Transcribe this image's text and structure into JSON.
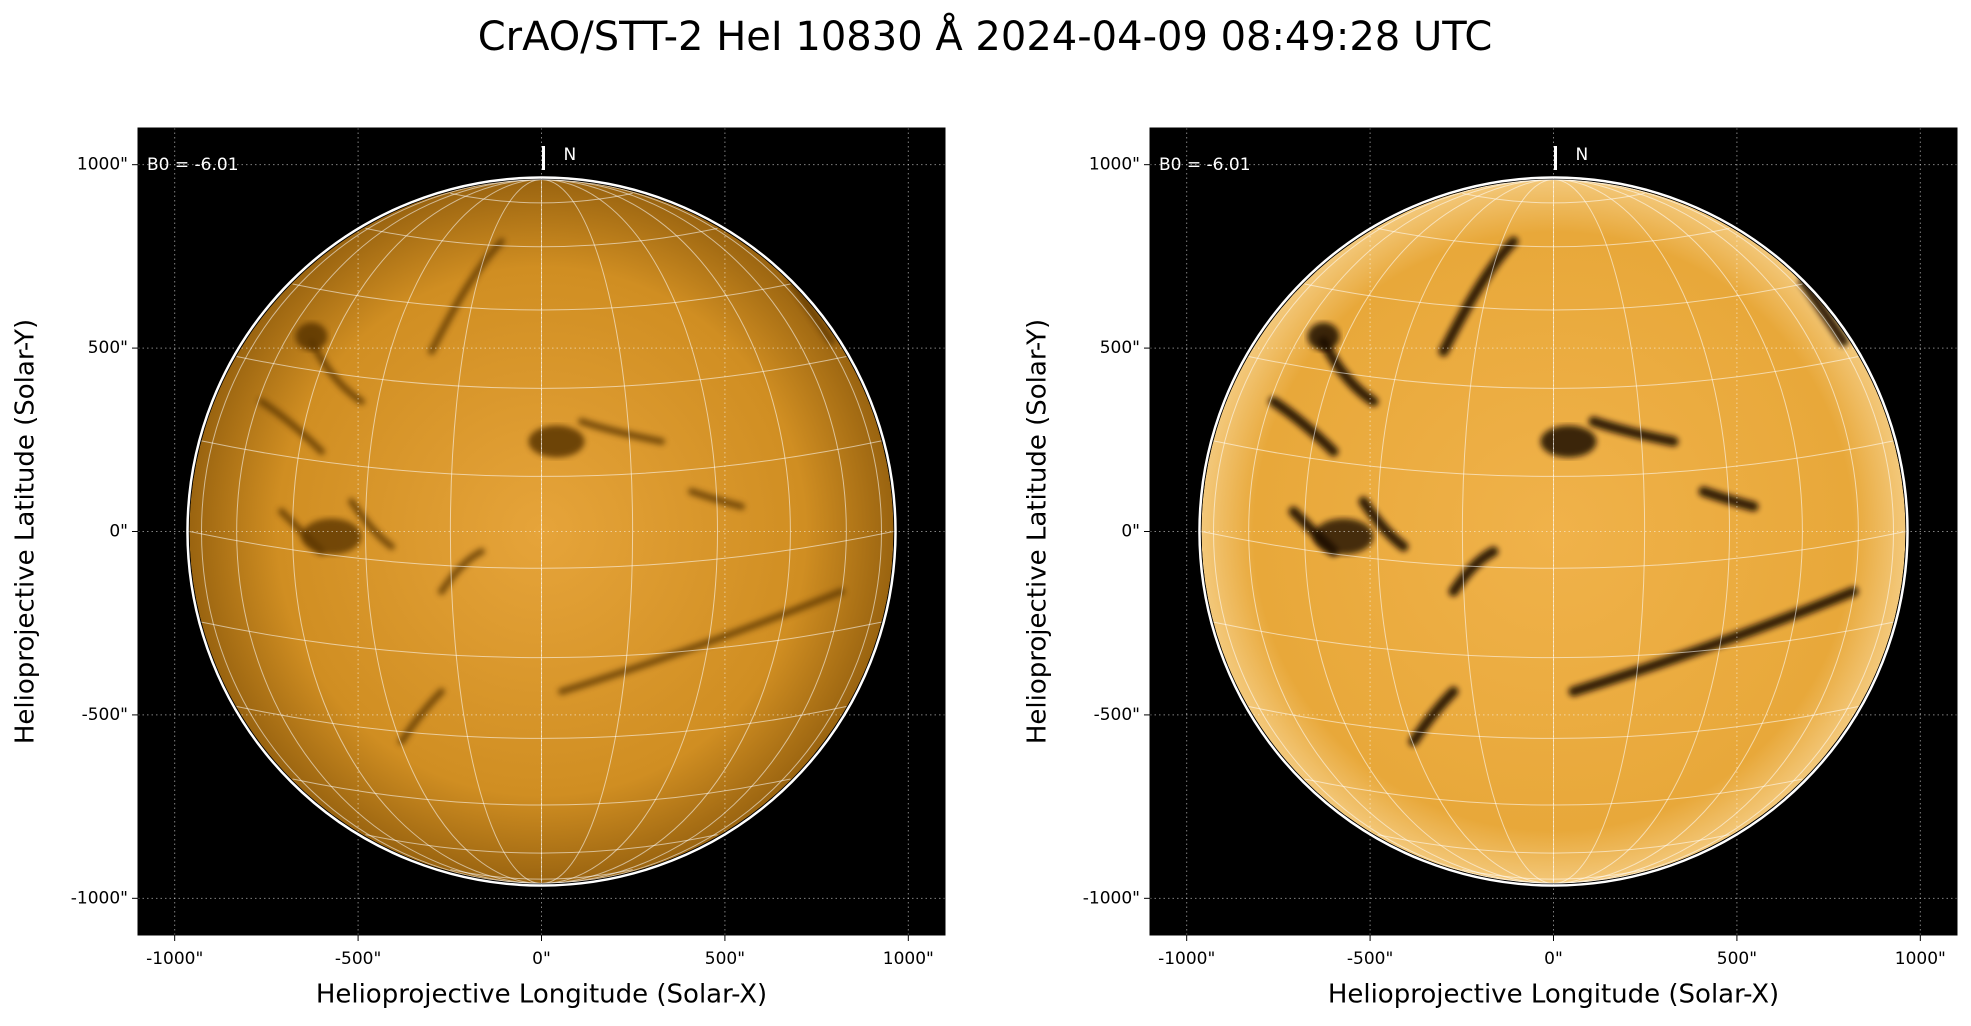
{
  "title": "CrAO/STT-2 HeI 10830 Å 2024-04-09 08:49:28 UTC",
  "chart_data": [
    {
      "type": "image",
      "xlabel": "Helioprojective Longitude (Solar-X)",
      "ylabel": "Helioprojective Latitude (Solar-Y)",
      "annotation": "B0 = -6.01",
      "north_label": "N",
      "xlim": [
        -1100,
        1100
      ],
      "ylim": [
        -1100,
        1100
      ],
      "xticks": [
        {
          "value": -1000,
          "label": "-1000\""
        },
        {
          "value": -500,
          "label": "-500\""
        },
        {
          "value": 0,
          "label": "0\""
        },
        {
          "value": 500,
          "label": "500\""
        },
        {
          "value": 1000,
          "label": "1000\""
        }
      ],
      "yticks": [
        {
          "value": -1000,
          "label": "-1000\""
        },
        {
          "value": -500,
          "label": "-500\""
        },
        {
          "value": 0,
          "label": "0\""
        },
        {
          "value": 500,
          "label": "500\""
        },
        {
          "value": 1000,
          "label": "1000\""
        }
      ],
      "grid": true
    },
    {
      "type": "image",
      "xlabel": "Helioprojective Longitude (Solar-X)",
      "ylabel": "Helioprojective Latitude (Solar-Y)",
      "annotation": "B0 = -6.01",
      "north_label": "N",
      "xlim": [
        -1100,
        1100
      ],
      "ylim": [
        -1100,
        1100
      ],
      "xticks": [
        {
          "value": -1000,
          "label": "-1000\""
        },
        {
          "value": -500,
          "label": "-500\""
        },
        {
          "value": 0,
          "label": "0\""
        },
        {
          "value": 500,
          "label": "500\""
        },
        {
          "value": 1000,
          "label": "1000\""
        }
      ],
      "yticks": [
        {
          "value": -1000,
          "label": "-1000\""
        },
        {
          "value": -500,
          "label": "-500\""
        },
        {
          "value": 0,
          "label": "0\""
        },
        {
          "value": 500,
          "label": "500\""
        },
        {
          "value": 1000,
          "label": "1000\""
        }
      ],
      "grid": true
    }
  ]
}
